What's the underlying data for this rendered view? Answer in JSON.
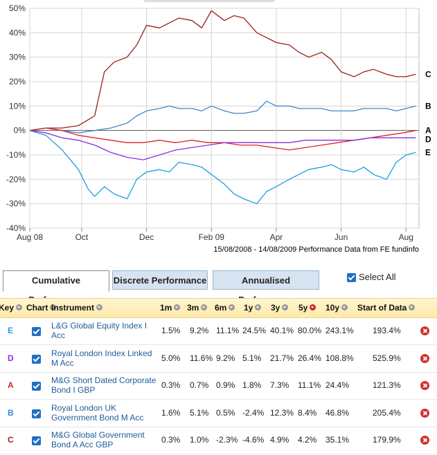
{
  "chart_data": {
    "type": "line",
    "y_ticks": [
      "50%",
      "40%",
      "30%",
      "20%",
      "10%",
      "0%",
      "-10%",
      "-20%",
      "-30%",
      "-40%"
    ],
    "y_values": [
      50,
      40,
      30,
      20,
      10,
      0,
      -10,
      -20,
      -30,
      -40
    ],
    "ylim": [
      -40,
      50
    ],
    "x_ticks": [
      "Aug 08",
      "Oct",
      "Dec",
      "Feb 09",
      "Apr",
      "Jun",
      "Aug"
    ],
    "x_tick_months": [
      0,
      1.6,
      3.6,
      5.6,
      7.6,
      9.6,
      11.6
    ],
    "xlim_months": [
      0,
      12
    ],
    "grid": true,
    "caption": "15/08/2008 - 14/08/2009 Performance Data from FE fundinfo",
    "series": [
      {
        "key": "C",
        "color": "#9b1c1c",
        "points": [
          [
            0,
            0
          ],
          [
            0.5,
            1
          ],
          [
            1,
            1
          ],
          [
            1.5,
            2
          ],
          [
            2,
            6
          ],
          [
            2.3,
            24
          ],
          [
            2.6,
            28
          ],
          [
            3,
            30
          ],
          [
            3.3,
            35
          ],
          [
            3.6,
            43
          ],
          [
            4,
            42
          ],
          [
            4.3,
            44
          ],
          [
            4.6,
            46
          ],
          [
            5,
            45
          ],
          [
            5.3,
            42
          ],
          [
            5.6,
            49
          ],
          [
            6,
            45
          ],
          [
            6.3,
            47
          ],
          [
            6.6,
            46
          ],
          [
            7,
            40
          ],
          [
            7.3,
            38
          ],
          [
            7.6,
            36
          ],
          [
            8,
            35
          ],
          [
            8.3,
            32
          ],
          [
            8.6,
            30
          ],
          [
            9,
            32
          ],
          [
            9.3,
            29
          ],
          [
            9.6,
            24
          ],
          [
            10,
            22
          ],
          [
            10.3,
            24
          ],
          [
            10.6,
            25
          ],
          [
            11,
            23
          ],
          [
            11.3,
            22
          ],
          [
            11.6,
            22
          ],
          [
            11.9,
            23
          ]
        ]
      },
      {
        "key": "B",
        "color": "#3f86c6",
        "points": [
          [
            0,
            0
          ],
          [
            0.5,
            1
          ],
          [
            1,
            0
          ],
          [
            1.5,
            -1
          ],
          [
            2,
            0
          ],
          [
            2.5,
            1
          ],
          [
            3,
            3
          ],
          [
            3.3,
            6
          ],
          [
            3.6,
            8
          ],
          [
            4,
            9
          ],
          [
            4.3,
            10
          ],
          [
            4.6,
            9
          ],
          [
            5,
            9
          ],
          [
            5.3,
            8
          ],
          [
            5.6,
            10
          ],
          [
            6,
            8
          ],
          [
            6.3,
            7
          ],
          [
            6.6,
            7
          ],
          [
            7,
            8
          ],
          [
            7.3,
            12
          ],
          [
            7.6,
            10
          ],
          [
            8,
            10
          ],
          [
            8.3,
            9
          ],
          [
            8.6,
            9
          ],
          [
            9,
            9
          ],
          [
            9.3,
            8
          ],
          [
            9.6,
            8
          ],
          [
            10,
            8
          ],
          [
            10.3,
            9
          ],
          [
            10.6,
            9
          ],
          [
            11,
            9
          ],
          [
            11.3,
            8
          ],
          [
            11.6,
            9
          ],
          [
            11.9,
            10
          ]
        ]
      },
      {
        "key": "A",
        "color": "#e02020",
        "points": [
          [
            0,
            0
          ],
          [
            0.5,
            1
          ],
          [
            1,
            0
          ],
          [
            1.5,
            -2
          ],
          [
            2,
            -3
          ],
          [
            2.5,
            -4
          ],
          [
            3,
            -5
          ],
          [
            3.5,
            -5
          ],
          [
            4,
            -4
          ],
          [
            4.5,
            -5
          ],
          [
            5,
            -4
          ],
          [
            5.5,
            -5
          ],
          [
            6,
            -5
          ],
          [
            6.5,
            -6
          ],
          [
            7,
            -6
          ],
          [
            7.5,
            -7
          ],
          [
            8,
            -8
          ],
          [
            8.5,
            -7
          ],
          [
            9,
            -6
          ],
          [
            9.5,
            -5
          ],
          [
            10,
            -4
          ],
          [
            10.5,
            -3
          ],
          [
            11,
            -2
          ],
          [
            11.5,
            -1
          ],
          [
            11.9,
            0
          ]
        ]
      },
      {
        "key": "D",
        "color": "#8a2be2",
        "points": [
          [
            0,
            0
          ],
          [
            0.5,
            -1
          ],
          [
            1,
            -3
          ],
          [
            1.5,
            -4
          ],
          [
            2,
            -6
          ],
          [
            2.5,
            -9
          ],
          [
            3,
            -11
          ],
          [
            3.5,
            -12
          ],
          [
            4,
            -10
          ],
          [
            4.5,
            -8
          ],
          [
            5,
            -7
          ],
          [
            5.5,
            -6
          ],
          [
            6,
            -5
          ],
          [
            6.5,
            -5
          ],
          [
            7,
            -5
          ],
          [
            7.5,
            -5
          ],
          [
            8,
            -5
          ],
          [
            8.5,
            -4
          ],
          [
            9,
            -4
          ],
          [
            9.5,
            -4
          ],
          [
            10,
            -4
          ],
          [
            10.5,
            -3
          ],
          [
            11,
            -3
          ],
          [
            11.5,
            -3
          ],
          [
            11.9,
            -3
          ]
        ]
      },
      {
        "key": "E",
        "color": "#1aa0dc",
        "points": [
          [
            0,
            0
          ],
          [
            0.5,
            -2
          ],
          [
            1,
            -8
          ],
          [
            1.5,
            -16
          ],
          [
            1.8,
            -24
          ],
          [
            2,
            -27
          ],
          [
            2.3,
            -23
          ],
          [
            2.6,
            -26
          ],
          [
            3,
            -28
          ],
          [
            3.3,
            -20
          ],
          [
            3.6,
            -17
          ],
          [
            4,
            -16
          ],
          [
            4.3,
            -17
          ],
          [
            4.6,
            -13
          ],
          [
            5,
            -14
          ],
          [
            5.3,
            -15
          ],
          [
            5.6,
            -18
          ],
          [
            6,
            -22
          ],
          [
            6.3,
            -26
          ],
          [
            6.6,
            -28
          ],
          [
            7,
            -30
          ],
          [
            7.3,
            -25
          ],
          [
            7.6,
            -23
          ],
          [
            8,
            -20
          ],
          [
            8.3,
            -18
          ],
          [
            8.6,
            -16
          ],
          [
            9,
            -15
          ],
          [
            9.3,
            -14
          ],
          [
            9.6,
            -16
          ],
          [
            10,
            -17
          ],
          [
            10.3,
            -15
          ],
          [
            10.6,
            -18
          ],
          [
            11,
            -20
          ],
          [
            11.3,
            -13
          ],
          [
            11.6,
            -10
          ],
          [
            11.9,
            -9
          ]
        ]
      }
    ]
  },
  "tabs": [
    {
      "label": "Cumulative Performance",
      "active": true
    },
    {
      "label": "Discrete Performance",
      "active": false
    },
    {
      "label": "Annualised Performance",
      "active": false
    }
  ],
  "select_all": {
    "label": "Select All",
    "checked": true
  },
  "table": {
    "headers": {
      "key": "Key",
      "chart": "Chart",
      "instrument": "Instrument",
      "m1": "1m",
      "m3": "3m",
      "m6": "6m",
      "y1": "1y",
      "y3": "3y",
      "y5": "5y",
      "y10": "10y",
      "start": "Start of Data"
    },
    "rows": [
      {
        "key": "E",
        "key_color": "#1aa0dc",
        "instrument": "L&G Global Equity Index I Acc",
        "m1": "1.5%",
        "m3": "9.2%",
        "m6": "11.1%",
        "y1": "24.5%",
        "y3": "40.1%",
        "y5": "80.0%",
        "y10": "243.1%",
        "start": "193.4%"
      },
      {
        "key": "D",
        "key_color": "#8a2be2",
        "instrument": "Royal London Index Linked M Acc",
        "m1": "5.0%",
        "m3": "11.6%",
        "m6": "9.2%",
        "y1": "5.1%",
        "y3": "21.7%",
        "y5": "26.4%",
        "y10": "108.8%",
        "start": "525.9%"
      },
      {
        "key": "A",
        "key_color": "#e02020",
        "instrument": "M&G Short Dated Corporate Bond I GBP",
        "m1": "0.3%",
        "m3": "0.7%",
        "m6": "0.9%",
        "y1": "1.8%",
        "y3": "7.3%",
        "y5": "11.1%",
        "y10": "24.4%",
        "start": "121.3%"
      },
      {
        "key": "B",
        "key_color": "#3f86c6",
        "instrument": "Royal London UK Government Bond M Acc",
        "m1": "1.6%",
        "m3": "5.1%",
        "m6": "0.5%",
        "y1": "-2.4%",
        "y3": "12.3%",
        "y5": "8.4%",
        "y10": "46.8%",
        "start": "205.4%"
      },
      {
        "key": "C",
        "key_color": "#9b1c1c",
        "instrument": "M&G Global Government Bond A Acc GBP",
        "m1": "0.3%",
        "m3": "1.0%",
        "m6": "-2.3%",
        "y1": "-4.6%",
        "y3": "4.9%",
        "y5": "4.2%",
        "y10": "35.1%",
        "start": "179.9%"
      }
    ]
  }
}
